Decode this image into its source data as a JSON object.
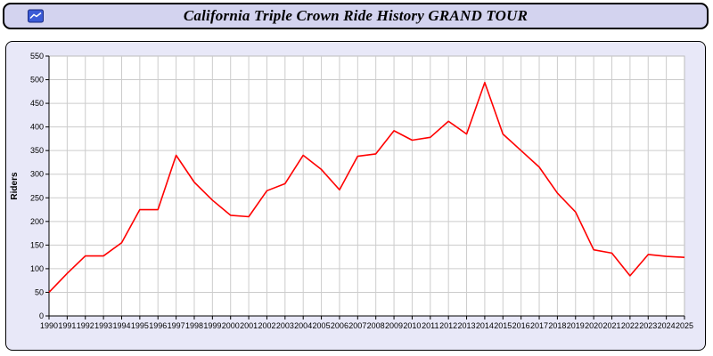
{
  "title_bar": {
    "title": "California Triple Crown Ride History GRAND TOUR",
    "icon": "chart-icon",
    "background": "#d3d3ef",
    "border_color": "#000000"
  },
  "panel": {
    "background": "#e8e8f8",
    "border_color": "#000000"
  },
  "chart_data": {
    "type": "line",
    "title": "California Triple Crown Ride History GRAND TOUR",
    "xlabel": "",
    "ylabel": "Riders",
    "ylim": [
      0,
      550
    ],
    "ytick_step": 50,
    "grid": true,
    "legend": "none",
    "line_color": "#ff0000",
    "plot_background": "#ffffff",
    "grid_color": "#cccccc",
    "x": [
      "1990",
      "1991",
      "1992",
      "1993",
      "1994",
      "1995",
      "1996",
      "1997",
      "1998",
      "1999",
      "2000",
      "2001",
      "2002",
      "2003",
      "2004",
      "2005",
      "2006",
      "2007",
      "2008",
      "2009",
      "2010",
      "2011",
      "2012",
      "2013",
      "2014",
      "2015",
      "2016",
      "2017",
      "2018",
      "2019",
      "2020",
      "2021",
      "2022",
      "2023",
      "2024",
      "2025"
    ],
    "series": [
      {
        "name": "Riders",
        "values": [
          50,
          90,
          127,
          127,
          155,
          225,
          225,
          340,
          283,
          245,
          213,
          210,
          265,
          280,
          340,
          310,
          267,
          338,
          343,
          392,
          372,
          378,
          412,
          385,
          494,
          385,
          350,
          315,
          260,
          220,
          140,
          133,
          85,
          130,
          126,
          124
        ]
      }
    ]
  }
}
